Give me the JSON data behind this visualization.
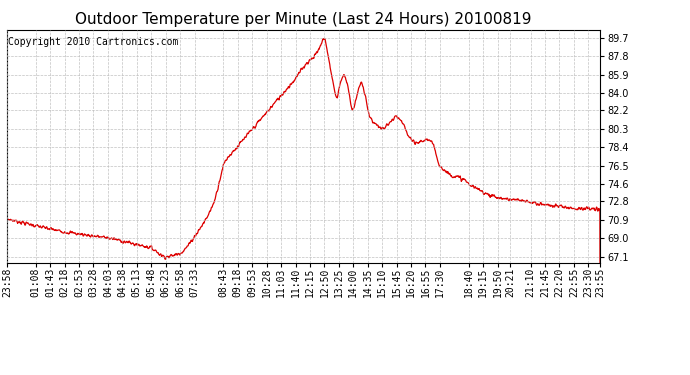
{
  "title": "Outdoor Temperature per Minute (Last 24 Hours) 20100819",
  "copyright_text": "Copyright 2010 Cartronics.com",
  "line_color": "#dd0000",
  "background_color": "#ffffff",
  "plot_bg_color": "#ffffff",
  "grid_color": "#bbbbbb",
  "yticks": [
    67.1,
    69.0,
    70.9,
    72.8,
    74.6,
    76.5,
    78.4,
    80.3,
    82.2,
    84.0,
    85.9,
    87.8,
    89.7
  ],
  "ylim": [
    66.5,
    90.5
  ],
  "xtick_labels": [
    "23:58",
    "01:08",
    "01:43",
    "02:18",
    "02:53",
    "03:28",
    "04:03",
    "04:38",
    "05:13",
    "05:48",
    "06:23",
    "06:58",
    "07:33",
    "08:43",
    "09:18",
    "09:53",
    "10:28",
    "11:03",
    "11:40",
    "12:15",
    "12:50",
    "13:25",
    "14:00",
    "14:35",
    "15:10",
    "15:45",
    "16:20",
    "16:55",
    "17:30",
    "18:40",
    "19:15",
    "19:50",
    "20:21",
    "21:10",
    "21:45",
    "22:20",
    "22:55",
    "23:30",
    "23:55"
  ],
  "title_fontsize": 11,
  "tick_fontsize": 7,
  "copyright_fontsize": 7
}
